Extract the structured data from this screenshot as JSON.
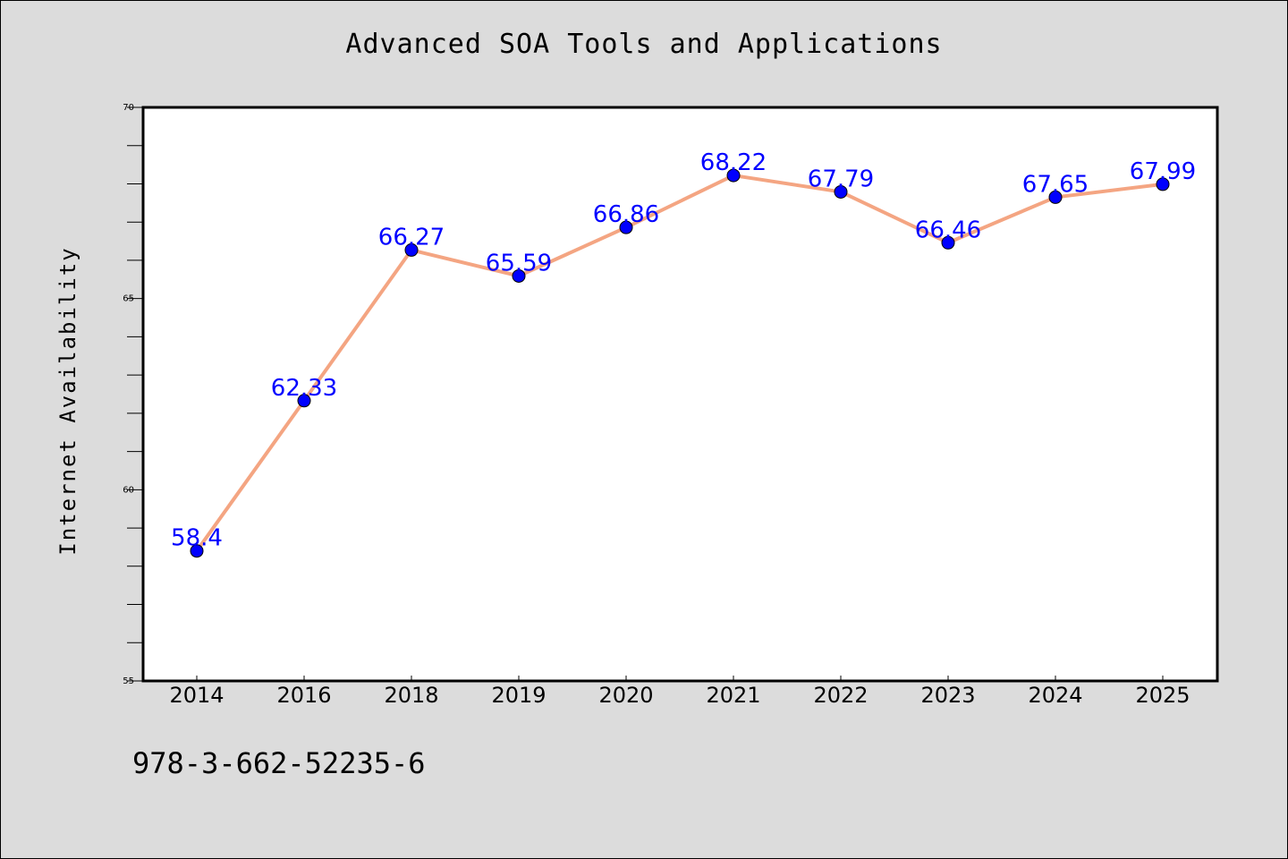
{
  "page": {
    "isbn": "978-3-662-52235-6"
  },
  "colors": {
    "background": "#dcdcdc",
    "plot_area": "#ffffff",
    "line": "#f4a582",
    "marker": "#0000ff",
    "data_label": "#0000ff"
  },
  "chart_data": {
    "type": "line",
    "title": "Advanced SOA Tools and Applications",
    "xlabel": "",
    "ylabel": "Internet Availability",
    "categories": [
      "2014",
      "2016",
      "2018",
      "2019",
      "2020",
      "2021",
      "2022",
      "2023",
      "2024",
      "2025"
    ],
    "values": [
      58.4,
      62.33,
      66.27,
      65.59,
      66.86,
      68.22,
      67.79,
      66.46,
      67.65,
      67.99
    ],
    "data_labels": [
      "58.4",
      "62.33",
      "66.27",
      "65.59",
      "66.86",
      "68.22",
      "67.79",
      "66.46",
      "67.65",
      "67.99"
    ],
    "ylim": [
      55,
      70
    ],
    "yticks": [
      55,
      60,
      65,
      70
    ],
    "yminor_step": 1,
    "grid": false,
    "legend": "none"
  }
}
